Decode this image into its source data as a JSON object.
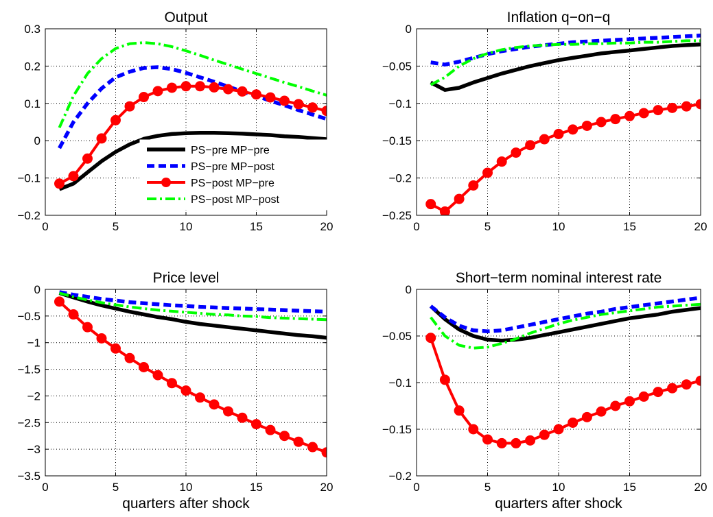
{
  "chart_data": [
    {
      "type": "line",
      "title": "Output",
      "xlabel": "",
      "ylabel": "",
      "xlim": [
        0,
        20
      ],
      "ylim": [
        -0.2,
        0.3
      ],
      "xticks": [
        "0",
        "5",
        "10",
        "15",
        "20"
      ],
      "yticks": [
        "−0.2",
        "−0.1",
        "0",
        "0.1",
        "0.2",
        "0.3"
      ],
      "grid": "dotted",
      "legend_placement": "lower-center",
      "x": [
        1,
        2,
        3,
        4,
        5,
        6,
        7,
        8,
        9,
        10,
        11,
        12,
        13,
        14,
        15,
        16,
        17,
        18,
        19,
        20
      ],
      "series": [
        {
          "name": "PS−pre MP−pre",
          "values": [
            -0.13,
            -0.115,
            -0.085,
            -0.055,
            -0.03,
            -0.01,
            0.005,
            0.013,
            0.018,
            0.02,
            0.021,
            0.021,
            0.02,
            0.019,
            0.017,
            0.015,
            0.012,
            0.01,
            0.007,
            0.004
          ]
        },
        {
          "name": "PS−pre MP−post",
          "values": [
            -0.02,
            0.05,
            0.1,
            0.14,
            0.17,
            0.185,
            0.195,
            0.197,
            0.192,
            0.182,
            0.17,
            0.158,
            0.145,
            0.132,
            0.12,
            0.107,
            0.095,
            0.082,
            0.07,
            0.058
          ]
        },
        {
          "name": "PS−post MP−pre",
          "values": [
            -0.115,
            -0.095,
            -0.048,
            0.006,
            0.055,
            0.092,
            0.117,
            0.133,
            0.142,
            0.146,
            0.146,
            0.143,
            0.138,
            0.132,
            0.124,
            0.116,
            0.107,
            0.098,
            0.089,
            0.08
          ]
        },
        {
          "name": "PS−post MP−post",
          "values": [
            0.035,
            0.12,
            0.18,
            0.22,
            0.247,
            0.26,
            0.263,
            0.26,
            0.252,
            0.241,
            0.229,
            0.216,
            0.204,
            0.192,
            0.18,
            0.168,
            0.156,
            0.145,
            0.133,
            0.122
          ]
        }
      ]
    },
    {
      "type": "line",
      "title": "Inflation q−on−q",
      "xlabel": "",
      "ylabel": "",
      "xlim": [
        0,
        20
      ],
      "ylim": [
        -0.25,
        0
      ],
      "xticks": [
        "0",
        "5",
        "10",
        "15",
        "20"
      ],
      "yticks": [
        "−0.25",
        "−0.2",
        "−0.15",
        "−0.1",
        "−0.05",
        "0"
      ],
      "grid": "dotted",
      "x": [
        1,
        2,
        3,
        4,
        5,
        6,
        7,
        8,
        9,
        10,
        11,
        12,
        13,
        14,
        15,
        16,
        17,
        18,
        19,
        20
      ],
      "series": [
        {
          "values": [
            -0.072,
            -0.082,
            -0.079,
            -0.072,
            -0.066,
            -0.06,
            -0.055,
            -0.05,
            -0.046,
            -0.042,
            -0.039,
            -0.036,
            -0.033,
            -0.031,
            -0.029,
            -0.027,
            -0.025,
            -0.023,
            -0.022,
            -0.021
          ]
        },
        {
          "values": [
            -0.045,
            -0.048,
            -0.044,
            -0.039,
            -0.034,
            -0.03,
            -0.027,
            -0.024,
            -0.022,
            -0.02,
            -0.018,
            -0.017,
            -0.016,
            -0.015,
            -0.014,
            -0.013,
            -0.012,
            -0.011,
            -0.01,
            -0.009
          ]
        },
        {
          "values": [
            -0.235,
            -0.245,
            -0.228,
            -0.21,
            -0.193,
            -0.178,
            -0.166,
            -0.156,
            -0.148,
            -0.141,
            -0.135,
            -0.13,
            -0.125,
            -0.121,
            -0.117,
            -0.113,
            -0.109,
            -0.106,
            -0.104,
            -0.101
          ]
        },
        {
          "values": [
            -0.075,
            -0.065,
            -0.05,
            -0.04,
            -0.033,
            -0.028,
            -0.025,
            -0.023,
            -0.022,
            -0.021,
            -0.021,
            -0.02,
            -0.02,
            -0.019,
            -0.019,
            -0.018,
            -0.018,
            -0.017,
            -0.016,
            -0.016
          ]
        }
      ]
    },
    {
      "type": "line",
      "title": "Price level",
      "xlabel": "quarters after shock",
      "ylabel": "",
      "xlim": [
        0,
        20
      ],
      "ylim": [
        -3.5,
        0
      ],
      "xticks": [
        "0",
        "5",
        "10",
        "15",
        "20"
      ],
      "yticks": [
        "−3.5",
        "−3",
        "−2.5",
        "−2",
        "−1.5",
        "−1",
        "−0.5",
        "0"
      ],
      "grid": "dotted",
      "x": [
        1,
        2,
        3,
        4,
        5,
        6,
        7,
        8,
        9,
        10,
        11,
        12,
        13,
        14,
        15,
        16,
        17,
        18,
        19,
        20
      ],
      "series": [
        {
          "values": [
            -0.07,
            -0.15,
            -0.23,
            -0.3,
            -0.36,
            -0.42,
            -0.47,
            -0.52,
            -0.56,
            -0.61,
            -0.65,
            -0.68,
            -0.71,
            -0.74,
            -0.77,
            -0.8,
            -0.83,
            -0.86,
            -0.88,
            -0.91
          ]
        },
        {
          "values": [
            -0.05,
            -0.1,
            -0.14,
            -0.18,
            -0.21,
            -0.24,
            -0.26,
            -0.28,
            -0.3,
            -0.31,
            -0.33,
            -0.34,
            -0.35,
            -0.36,
            -0.37,
            -0.38,
            -0.39,
            -0.4,
            -0.41,
            -0.42
          ]
        },
        {
          "values": [
            -0.23,
            -0.47,
            -0.71,
            -0.92,
            -1.11,
            -1.29,
            -1.46,
            -1.61,
            -1.76,
            -1.9,
            -2.03,
            -2.16,
            -2.29,
            -2.41,
            -2.53,
            -2.64,
            -2.75,
            -2.86,
            -2.96,
            -3.06
          ]
        },
        {
          "values": [
            -0.07,
            -0.14,
            -0.2,
            -0.25,
            -0.29,
            -0.33,
            -0.36,
            -0.39,
            -0.41,
            -0.43,
            -0.45,
            -0.47,
            -0.48,
            -0.5,
            -0.51,
            -0.53,
            -0.54,
            -0.55,
            -0.56,
            -0.57
          ]
        }
      ]
    },
    {
      "type": "line",
      "title": "Short−term nominal interest rate",
      "xlabel": "quarters after shock",
      "ylabel": "",
      "xlim": [
        0,
        20
      ],
      "ylim": [
        -0.2,
        0
      ],
      "xticks": [
        "0",
        "5",
        "10",
        "15",
        "20"
      ],
      "yticks": [
        "−0.2",
        "−0.15",
        "−0.1",
        "−0.05",
        "0"
      ],
      "grid": "dotted",
      "x": [
        1,
        2,
        3,
        4,
        5,
        6,
        7,
        8,
        9,
        10,
        11,
        12,
        13,
        14,
        15,
        16,
        17,
        18,
        19,
        20
      ],
      "series": [
        {
          "values": [
            -0.018,
            -0.032,
            -0.043,
            -0.05,
            -0.054,
            -0.055,
            -0.054,
            -0.052,
            -0.049,
            -0.046,
            -0.043,
            -0.04,
            -0.037,
            -0.034,
            -0.031,
            -0.029,
            -0.027,
            -0.024,
            -0.022,
            -0.02
          ]
        },
        {
          "values": [
            -0.018,
            -0.03,
            -0.039,
            -0.044,
            -0.045,
            -0.044,
            -0.041,
            -0.038,
            -0.035,
            -0.032,
            -0.029,
            -0.026,
            -0.024,
            -0.021,
            -0.019,
            -0.017,
            -0.015,
            -0.013,
            -0.011,
            -0.009
          ]
        },
        {
          "values": [
            -0.052,
            -0.097,
            -0.13,
            -0.15,
            -0.161,
            -0.165,
            -0.165,
            -0.162,
            -0.156,
            -0.15,
            -0.143,
            -0.137,
            -0.131,
            -0.125,
            -0.12,
            -0.115,
            -0.11,
            -0.106,
            -0.102,
            -0.098
          ]
        },
        {
          "values": [
            -0.03,
            -0.05,
            -0.06,
            -0.063,
            -0.062,
            -0.058,
            -0.053,
            -0.047,
            -0.042,
            -0.037,
            -0.033,
            -0.03,
            -0.027,
            -0.025,
            -0.023,
            -0.021,
            -0.019,
            -0.018,
            -0.017,
            -0.016
          ]
        }
      ]
    }
  ],
  "styles": {
    "series_colors": [
      "#000000",
      "#0000ff",
      "#ff0000",
      "#00ff00"
    ],
    "series_line_styles": [
      "solid",
      "dashed",
      "solid-with-circle-markers",
      "dash-dot"
    ]
  }
}
